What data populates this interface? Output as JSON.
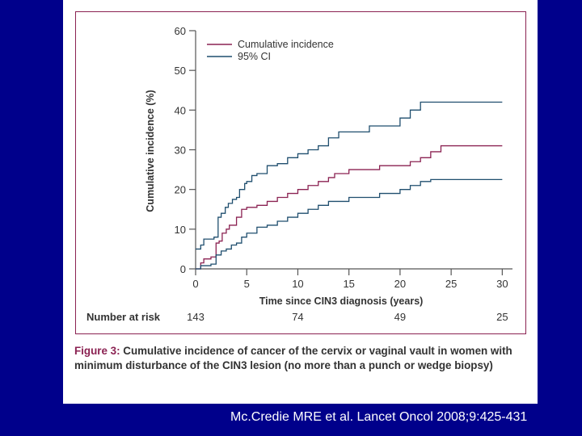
{
  "chart_data": {
    "type": "line",
    "xlabel": "Time since CIN3 diagnosis (years)",
    "ylabel": "Cumulative incidence (%)",
    "xlim": [
      0,
      31
    ],
    "ylim": [
      0,
      60
    ],
    "xticks": [
      0,
      5,
      10,
      15,
      20,
      25,
      30
    ],
    "yticks": [
      0,
      10,
      20,
      30,
      40,
      50,
      60
    ],
    "legend_position": "top-left",
    "series": [
      {
        "name": "Cumulative incidence",
        "color": "#8b2252",
        "steps": [
          [
            0,
            0
          ],
          [
            0.5,
            1.5
          ],
          [
            0.8,
            2.5
          ],
          [
            1.5,
            3
          ],
          [
            2,
            6.5
          ],
          [
            2.3,
            7
          ],
          [
            2.6,
            9
          ],
          [
            3,
            10
          ],
          [
            3.3,
            11
          ],
          [
            4,
            13
          ],
          [
            4.5,
            15
          ],
          [
            5,
            15.5
          ],
          [
            6,
            16
          ],
          [
            7,
            17
          ],
          [
            8,
            18
          ],
          [
            9,
            19
          ],
          [
            10,
            20
          ],
          [
            11,
            21
          ],
          [
            12,
            22
          ],
          [
            13,
            23
          ],
          [
            13.6,
            24
          ],
          [
            15,
            25
          ],
          [
            18,
            26
          ],
          [
            21,
            27
          ],
          [
            22,
            28
          ],
          [
            23,
            29.5
          ],
          [
            24,
            31
          ],
          [
            30,
            31
          ]
        ]
      },
      {
        "name": "95% CI",
        "color": "#1f4e6e",
        "steps": [
          [
            0,
            5
          ],
          [
            0.5,
            6
          ],
          [
            0.8,
            7.5
          ],
          [
            1.8,
            8
          ],
          [
            2.2,
            13
          ],
          [
            2.5,
            14
          ],
          [
            2.9,
            15.5
          ],
          [
            3.2,
            16.5
          ],
          [
            3.6,
            17.5
          ],
          [
            4,
            18
          ],
          [
            4.3,
            20
          ],
          [
            4.8,
            21.5
          ],
          [
            5,
            22
          ],
          [
            5.5,
            23.5
          ],
          [
            6,
            24
          ],
          [
            7,
            26
          ],
          [
            8,
            26.5
          ],
          [
            9,
            28
          ],
          [
            10,
            29
          ],
          [
            11,
            30
          ],
          [
            12,
            31
          ],
          [
            13,
            33
          ],
          [
            14,
            34.5
          ],
          [
            17,
            36
          ],
          [
            20,
            38
          ],
          [
            21,
            40
          ],
          [
            22,
            42
          ],
          [
            30,
            42
          ]
        ]
      },
      {
        "name": "",
        "color": "#1f4e6e",
        "steps": [
          [
            0,
            0
          ],
          [
            0.5,
            0.8
          ],
          [
            1.5,
            1.2
          ],
          [
            2,
            3.5
          ],
          [
            2.5,
            4.5
          ],
          [
            3,
            5
          ],
          [
            3.5,
            6
          ],
          [
            4,
            6.5
          ],
          [
            4.5,
            8
          ],
          [
            5,
            9
          ],
          [
            6,
            10.5
          ],
          [
            7,
            11
          ],
          [
            8,
            12
          ],
          [
            9,
            13
          ],
          [
            10,
            14
          ],
          [
            11,
            15
          ],
          [
            12,
            16
          ],
          [
            13,
            17
          ],
          [
            15,
            18
          ],
          [
            18,
            19
          ],
          [
            20,
            20
          ],
          [
            21,
            21
          ],
          [
            22,
            22
          ],
          [
            23,
            22.5
          ],
          [
            30,
            22.5
          ]
        ]
      }
    ],
    "risk_table": {
      "label": "Number at risk",
      "entries": [
        {
          "x": 0,
          "value": "143"
        },
        {
          "x": 10,
          "value": "74"
        },
        {
          "x": 20,
          "value": "49"
        },
        {
          "x": 30,
          "value": "25"
        }
      ]
    }
  },
  "caption": {
    "label": "Figure 3:",
    "text": " Cumulative incidence of cancer of the cervix or vaginal vault in women with minimum disturbance of the CIN3 lesion (no more than a punch or wedge biopsy)"
  },
  "citation": "Mc.Credie MRE et al.  Lancet Oncol 2008;9:425-431"
}
